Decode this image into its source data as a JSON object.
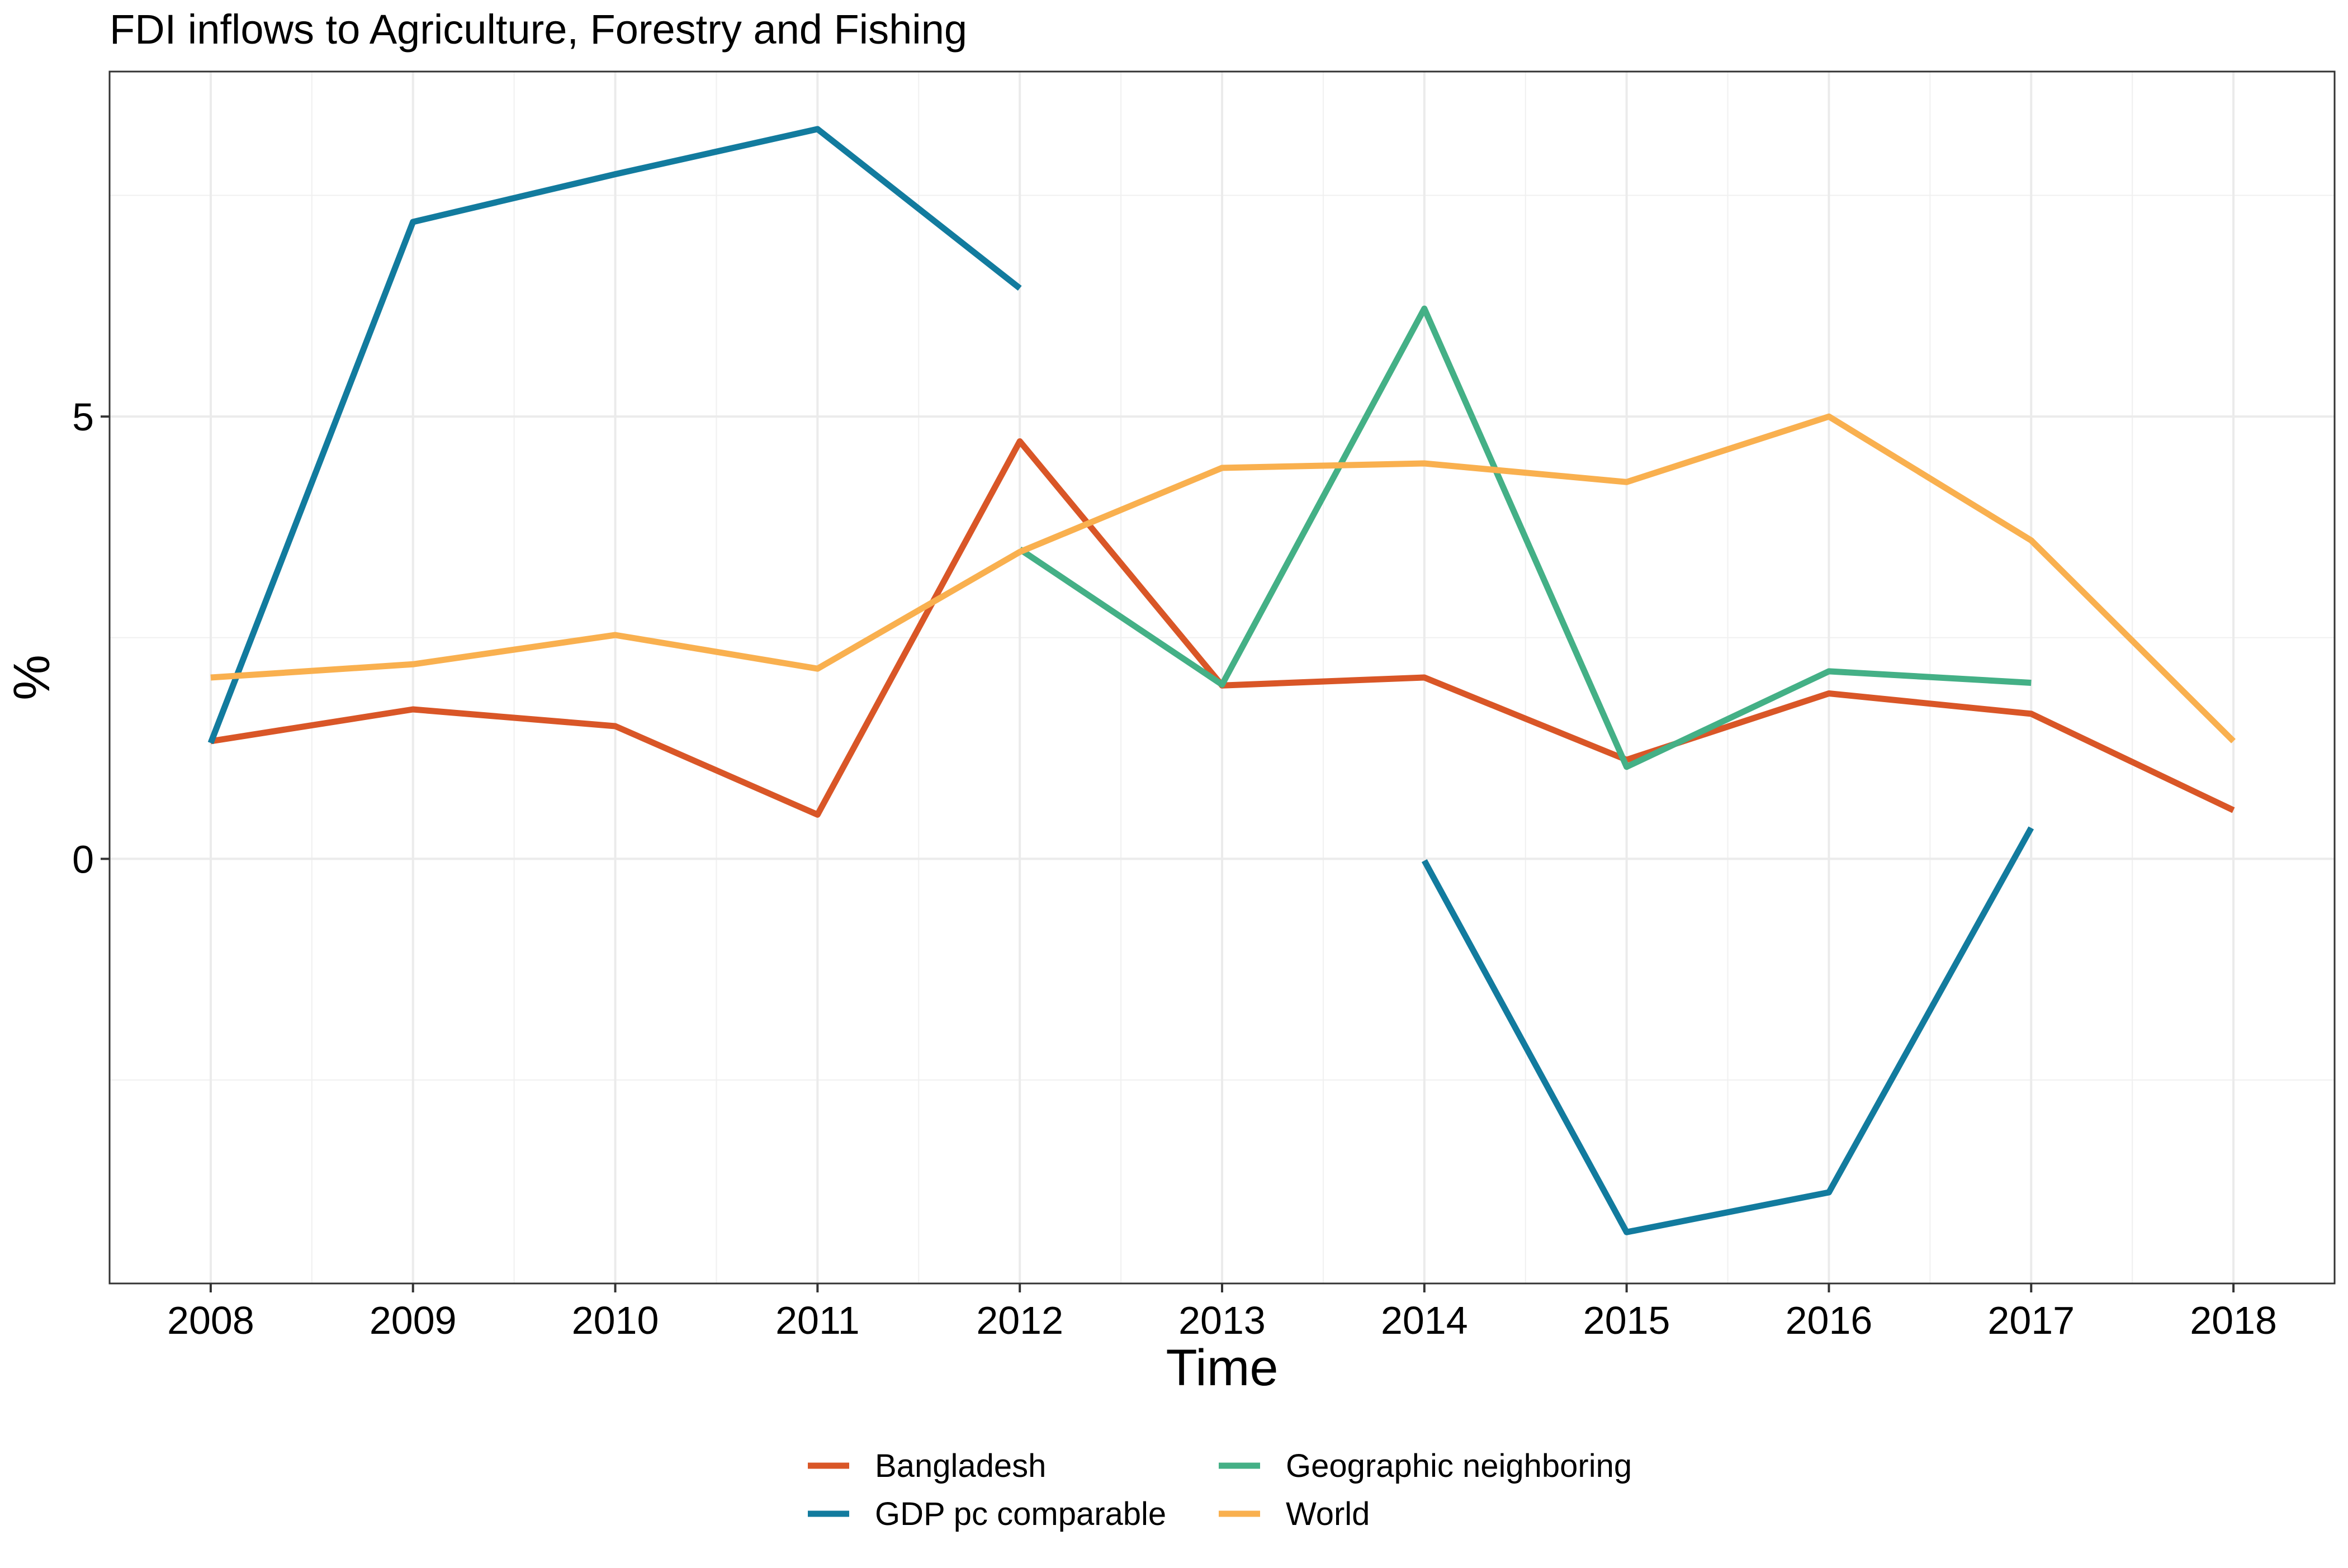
{
  "chart_data": {
    "type": "line",
    "title": "FDI inflows to Agriculture, Forestry and Fishing",
    "xlabel": "Time",
    "ylabel": "%",
    "x": [
      2008,
      2009,
      2010,
      2011,
      2012,
      2013,
      2014,
      2015,
      2016,
      2017,
      2018
    ],
    "xlim": [
      2007.5,
      2018.5
    ],
    "ylim": [
      -4.8,
      8.9
    ],
    "y_ticks": [
      0,
      5
    ],
    "grid": true,
    "legend_position": "bottom",
    "series": [
      {
        "name": "Bangladesh",
        "color": "#D95627",
        "values": [
          1.33,
          1.69,
          1.5,
          0.5,
          4.72,
          1.96,
          2.05,
          1.12,
          1.87,
          1.64,
          0.55
        ]
      },
      {
        "name": "GDP pc comparable",
        "color": "#127B9E",
        "values": [
          1.31,
          7.2,
          7.74,
          8.25,
          6.45,
          null,
          -0.02,
          -4.22,
          -3.77,
          0.35,
          null
        ]
      },
      {
        "name": "Geographic neighboring",
        "color": "#44B086",
        "values": [
          null,
          null,
          null,
          null,
          3.5,
          1.97,
          6.22,
          1.04,
          2.12,
          1.99,
          null
        ]
      },
      {
        "name": "World",
        "color": "#F9B04F",
        "values": [
          2.05,
          2.2,
          2.53,
          2.15,
          3.47,
          4.42,
          4.47,
          4.26,
          5.0,
          3.6,
          1.33
        ]
      }
    ]
  }
}
